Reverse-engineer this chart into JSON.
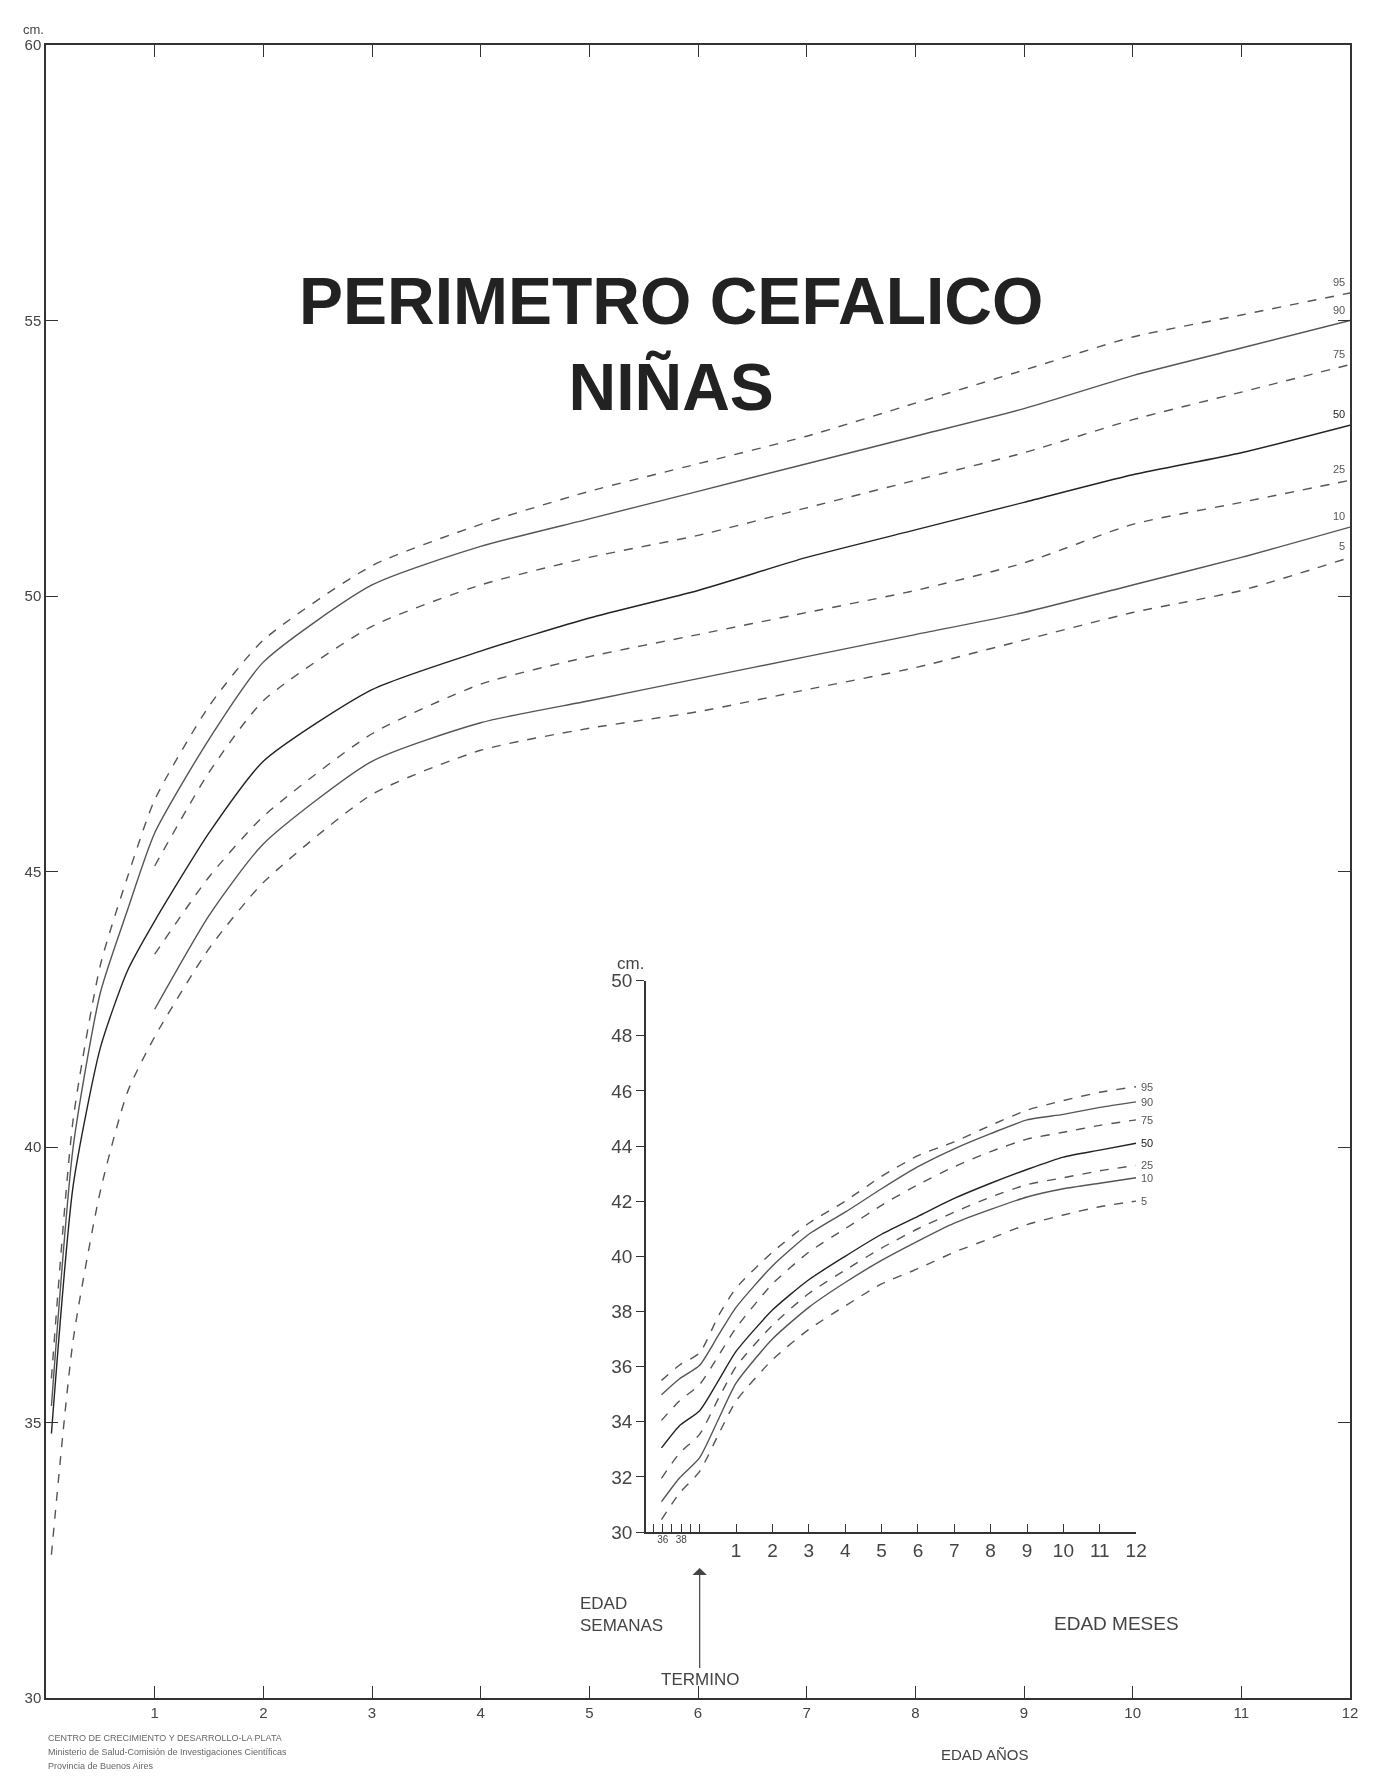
{
  "chart_data": [
    {
      "type": "line",
      "title": "PERIMETRO CEFALICO\nNIÑAS",
      "xlabel": "EDAD AÑOS",
      "ylabel": "cm.",
      "annotations": [
        "CENTRO DE CRECIMIENTO Y DESARROLLO-LA PLATA",
        "Ministerio de Salud-Comisión de Investigaciones Científicas",
        "Provincia de Buenos Aires"
      ],
      "xlim": [
        0,
        12
      ],
      "xticks": [
        1,
        2,
        3,
        4,
        5,
        6,
        7,
        8,
        9,
        10,
        11,
        12
      ],
      "ylim": [
        30,
        60
      ],
      "yticks": [
        30,
        35,
        40,
        45,
        50,
        55,
        60
      ],
      "legend": false,
      "series": [
        {
          "name": "95",
          "color": "#555555",
          "line_style": "dashed",
          "x": [
            0.05,
            0.25,
            0.5,
            0.75,
            1,
            1.5,
            2,
            3,
            4,
            5,
            6,
            7,
            8,
            9,
            10,
            11,
            12
          ],
          "values": [
            35.8,
            40.5,
            43.3,
            44.9,
            46.3,
            48.0,
            49.2,
            50.55,
            51.3,
            51.9,
            52.4,
            52.9,
            53.5,
            54.1,
            54.7,
            55.1,
            55.5
          ]
        },
        {
          "name": "90",
          "color": "#555555",
          "line_style": "solid",
          "x": [
            0.05,
            0.25,
            0.5,
            0.75,
            1,
            1.5,
            2,
            3,
            4,
            5,
            6,
            7,
            8,
            9,
            10,
            11,
            12
          ],
          "values": [
            35.3,
            40.0,
            42.8,
            44.3,
            45.7,
            47.4,
            48.8,
            50.2,
            50.9,
            51.4,
            51.9,
            52.4,
            52.9,
            53.4,
            54.0,
            54.5,
            55.0
          ]
        },
        {
          "name": "75",
          "color": "#555555",
          "line_style": "dashed",
          "x": [
            1,
            1.5,
            2,
            3,
            4,
            5,
            6,
            7,
            8,
            9,
            10,
            11,
            12
          ],
          "values": [
            45.1,
            46.8,
            48.1,
            49.45,
            50.2,
            50.7,
            51.1,
            51.6,
            52.1,
            52.6,
            53.2,
            53.7,
            54.2
          ]
        },
        {
          "name": "50",
          "color": "#222222",
          "line_style": "solid",
          "x": [
            0.05,
            0.25,
            0.5,
            0.75,
            1,
            1.5,
            2,
            3,
            4,
            5,
            6,
            7,
            8,
            9,
            10,
            11,
            12
          ],
          "values": [
            34.8,
            39.3,
            41.8,
            43.2,
            44.1,
            45.7,
            47.0,
            48.3,
            49.0,
            49.6,
            50.1,
            50.7,
            51.2,
            51.7,
            52.2,
            52.6,
            53.1
          ]
        },
        {
          "name": "25",
          "color": "#555555",
          "line_style": "dashed",
          "x": [
            1,
            1.5,
            2,
            3,
            4,
            5,
            6,
            7,
            8,
            9,
            10,
            11,
            12
          ],
          "values": [
            43.5,
            44.9,
            46.0,
            47.5,
            48.4,
            48.9,
            49.3,
            49.7,
            50.1,
            50.6,
            51.3,
            51.7,
            52.1
          ]
        },
        {
          "name": "10",
          "color": "#555555",
          "line_style": "solid",
          "x": [
            1,
            1.5,
            2,
            3,
            4,
            5,
            6,
            7,
            8,
            9,
            10,
            11,
            12
          ],
          "values": [
            42.5,
            44.2,
            45.5,
            47.0,
            47.7,
            48.1,
            48.5,
            48.9,
            49.3,
            49.7,
            50.2,
            50.7,
            51.25
          ]
        },
        {
          "name": "5",
          "color": "#555555",
          "line_style": "dashed",
          "x": [
            0.05,
            0.25,
            0.5,
            0.75,
            1,
            1.5,
            2,
            3,
            4,
            5,
            6,
            7,
            8,
            9,
            10,
            11,
            12
          ],
          "values": [
            32.6,
            36.5,
            39.2,
            41.0,
            42.0,
            43.6,
            44.8,
            46.4,
            47.2,
            47.6,
            47.9,
            48.3,
            48.7,
            49.2,
            49.7,
            50.1,
            50.7
          ]
        }
      ]
    },
    {
      "type": "line",
      "xlabel": "EDAD MESES",
      "ylabel": "cm.",
      "annotations": [
        "EDAD SEMANAS",
        "TERMINO"
      ],
      "x": [
        -1.05,
        -0.56,
        0,
        0.52,
        1,
        2,
        3,
        4,
        5,
        6,
        7,
        8,
        9,
        10,
        11,
        12
      ],
      "xlim": [
        -1.48,
        12
      ],
      "xticks": [
        1,
        2,
        3,
        4,
        5,
        6,
        7,
        8,
        9,
        10,
        11,
        12
      ],
      "x2lim": [
        34.17,
        87.28
      ],
      "x2ticks": [
        {
          "value": 35,
          "label": null
        },
        36,
        {
          "value": 37,
          "label": null
        },
        38,
        {
          "value": 39,
          "label": null
        },
        {
          "value": 40,
          "label": null
        }
      ],
      "ylim": [
        30,
        50
      ],
      "yticks": [
        30,
        32,
        34,
        36,
        38,
        40,
        42,
        44,
        46,
        48,
        50
      ],
      "legend": false,
      "series": [
        {
          "name": "95",
          "color": "#555555",
          "line_style": "dashed",
          "values": [
            35.5,
            36.05,
            36.5,
            37.85,
            38.85,
            40.15,
            41.2,
            42.0,
            42.9,
            43.65,
            44.15,
            44.75,
            45.3,
            45.65,
            45.95,
            46.15
          ]
        },
        {
          "name": "90",
          "color": "#555555",
          "line_style": "solid",
          "values": [
            34.98,
            35.55,
            36.05,
            37.15,
            38.15,
            39.65,
            40.8,
            41.6,
            42.45,
            43.25,
            43.9,
            44.45,
            44.95,
            45.15,
            45.4,
            45.6
          ]
        },
        {
          "name": "75",
          "color": "#555555",
          "line_style": "dashed",
          "values": [
            34.05,
            34.75,
            35.35,
            36.4,
            37.4,
            39.0,
            40.15,
            41.0,
            41.85,
            42.6,
            43.25,
            43.8,
            44.25,
            44.5,
            44.75,
            44.95
          ]
        },
        {
          "name": "50",
          "color": "#222222",
          "line_style": "solid",
          "values": [
            33.05,
            33.85,
            34.4,
            35.5,
            36.55,
            38.05,
            39.15,
            40.0,
            40.8,
            41.45,
            42.1,
            42.65,
            43.15,
            43.6,
            43.85,
            44.1
          ]
        },
        {
          "name": "25",
          "color": "#555555",
          "line_style": "dashed",
          "values": [
            31.95,
            32.85,
            33.55,
            34.85,
            36.0,
            37.5,
            38.65,
            39.5,
            40.3,
            41.0,
            41.6,
            42.15,
            42.6,
            42.85,
            43.1,
            43.3
          ]
        },
        {
          "name": "10",
          "color": "#555555",
          "line_style": "solid",
          "values": [
            31.1,
            31.95,
            32.7,
            34.1,
            35.4,
            37.0,
            38.15,
            39.05,
            39.85,
            40.55,
            41.2,
            41.7,
            42.15,
            42.45,
            42.65,
            42.85
          ]
        },
        {
          "name": "5",
          "color": "#555555",
          "line_style": "dashed",
          "values": [
            30.45,
            31.4,
            32.2,
            33.55,
            34.75,
            36.25,
            37.35,
            38.2,
            39.0,
            39.55,
            40.15,
            40.65,
            41.15,
            41.5,
            41.8,
            42.0
          ]
        }
      ]
    }
  ]
}
